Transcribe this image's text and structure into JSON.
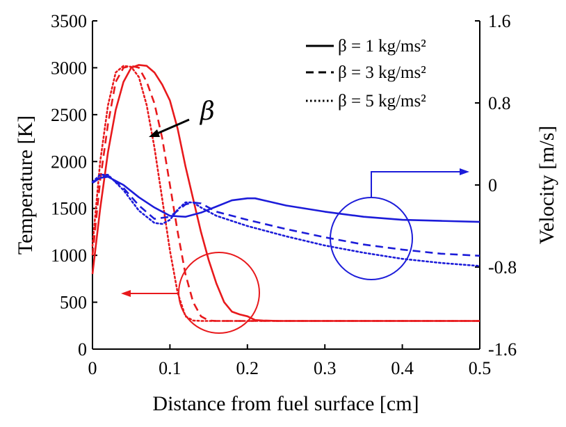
{
  "chart_data": {
    "type": "line",
    "xlabel": "Distance from fuel surface [cm]",
    "ylabel_left": "Temperature [K]",
    "ylabel_right": "Velocity [m/s]",
    "xlim": [
      0,
      0.5
    ],
    "ylim_left": [
      0,
      3500
    ],
    "ylim_right": [
      -1.6,
      1.6
    ],
    "x_ticks": [
      "0",
      "0.1",
      "0.2",
      "0.3",
      "0.4",
      "0.5"
    ],
    "y_left_ticks": [
      "0",
      "500",
      "1000",
      "1500",
      "2000",
      "2500",
      "3000",
      "3500"
    ],
    "y_right_ticks": [
      "-1.6",
      "-0.8",
      "0",
      "0.8",
      "1.6"
    ],
    "grid": false,
    "legend": {
      "position": "top-right",
      "entries": [
        {
          "style": "solid",
          "label": "β = 1 kg/ms²"
        },
        {
          "style": "dashed",
          "label": "β = 3 kg/ms²"
        },
        {
          "style": "dotted",
          "label": "β = 5 kg/ms²"
        }
      ]
    },
    "annotation_beta": "β",
    "colors": {
      "temperature": "#e8191c",
      "velocity": "#1c1cd9",
      "axes": "#000000"
    },
    "series": [
      {
        "name": "Temperature, β = 1 kg/ms²",
        "axis": "left",
        "style": "solid",
        "color": "#e8191c",
        "x": [
          0,
          0.01,
          0.02,
          0.03,
          0.04,
          0.05,
          0.06,
          0.07,
          0.08,
          0.09,
          0.1,
          0.11,
          0.12,
          0.13,
          0.14,
          0.15,
          0.16,
          0.17,
          0.18,
          0.19,
          0.2,
          0.21,
          0.22,
          0.24,
          0.3,
          0.4,
          0.5
        ],
        "y": [
          800,
          1500,
          2100,
          2550,
          2850,
          3000,
          3030,
          3020,
          2950,
          2820,
          2650,
          2350,
          1950,
          1600,
          1250,
          950,
          700,
          500,
          400,
          370,
          350,
          310,
          305,
          300,
          300,
          300,
          300
        ]
      },
      {
        "name": "Temperature, β = 3 kg/ms²",
        "axis": "left",
        "style": "dashed",
        "color": "#e8191c",
        "x": [
          0,
          0.01,
          0.02,
          0.03,
          0.04,
          0.05,
          0.06,
          0.07,
          0.08,
          0.09,
          0.1,
          0.11,
          0.12,
          0.13,
          0.14,
          0.15,
          0.16,
          0.2,
          0.3,
          0.4,
          0.5
        ],
        "y": [
          1000,
          1800,
          2400,
          2850,
          3000,
          3020,
          3000,
          2850,
          2620,
          2250,
          1750,
          1250,
          800,
          500,
          350,
          305,
          300,
          300,
          300,
          300,
          300
        ]
      },
      {
        "name": "Temperature, β = 5 kg/ms²",
        "axis": "left",
        "style": "dotted",
        "color": "#e8191c",
        "x": [
          0,
          0.01,
          0.02,
          0.03,
          0.04,
          0.05,
          0.06,
          0.07,
          0.08,
          0.09,
          0.1,
          0.11,
          0.12,
          0.13,
          0.14,
          0.2,
          0.3,
          0.4,
          0.5
        ],
        "y": [
          1100,
          2000,
          2600,
          2950,
          3020,
          3010,
          2900,
          2600,
          2150,
          1600,
          1050,
          600,
          350,
          305,
          300,
          300,
          300,
          300,
          300
        ]
      },
      {
        "name": "Velocity, β = 1 kg/ms²",
        "axis": "right",
        "style": "solid",
        "color": "#1c1cd9",
        "x": [
          0,
          0.01,
          0.02,
          0.04,
          0.06,
          0.08,
          0.1,
          0.12,
          0.14,
          0.16,
          0.18,
          0.2,
          0.21,
          0.25,
          0.3,
          0.35,
          0.4,
          0.45,
          0.5
        ],
        "y": [
          0.02,
          0.07,
          0.08,
          0.0,
          -0.12,
          -0.22,
          -0.3,
          -0.31,
          -0.27,
          -0.21,
          -0.15,
          -0.13,
          -0.13,
          -0.2,
          -0.26,
          -0.31,
          -0.34,
          -0.35,
          -0.36
        ]
      },
      {
        "name": "Velocity, β = 3 kg/ms²",
        "axis": "right",
        "style": "dashed",
        "color": "#1c1cd9",
        "x": [
          0,
          0.01,
          0.02,
          0.04,
          0.06,
          0.08,
          0.1,
          0.11,
          0.12,
          0.13,
          0.14,
          0.15,
          0.16,
          0.2,
          0.25,
          0.3,
          0.35,
          0.4,
          0.45,
          0.5
        ],
        "y": [
          0.02,
          0.08,
          0.09,
          -0.03,
          -0.2,
          -0.33,
          -0.31,
          -0.25,
          -0.19,
          -0.17,
          -0.18,
          -0.22,
          -0.26,
          -0.34,
          -0.43,
          -0.51,
          -0.58,
          -0.63,
          -0.67,
          -0.69
        ]
      },
      {
        "name": "Velocity, β = 5 kg/ms²",
        "axis": "right",
        "style": "dotted",
        "color": "#1c1cd9",
        "x": [
          0,
          0.01,
          0.02,
          0.04,
          0.06,
          0.08,
          0.09,
          0.1,
          0.11,
          0.12,
          0.13,
          0.14,
          0.16,
          0.2,
          0.25,
          0.3,
          0.35,
          0.4,
          0.45,
          0.5
        ],
        "y": [
          0.03,
          0.1,
          0.1,
          -0.05,
          -0.25,
          -0.37,
          -0.38,
          -0.34,
          -0.24,
          -0.17,
          -0.17,
          -0.22,
          -0.3,
          -0.4,
          -0.5,
          -0.59,
          -0.66,
          -0.72,
          -0.76,
          -0.79
        ]
      }
    ]
  }
}
